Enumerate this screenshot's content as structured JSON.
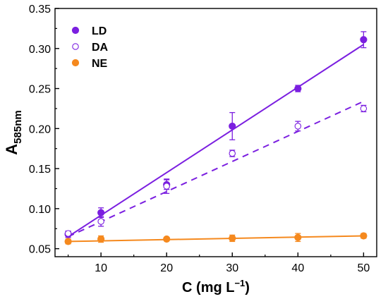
{
  "chart_data": {
    "type": "scatter",
    "xlabel": {
      "main": "C (mg L",
      "sup": "−1",
      "end": ")"
    },
    "ylabel": {
      "main": "A",
      "sub": "585nm"
    },
    "xlim": [
      3,
      52
    ],
    "ylim": [
      0.04,
      0.35
    ],
    "xticks": [
      10,
      20,
      30,
      40,
      50
    ],
    "yticks": [
      0.05,
      0.1,
      0.15,
      0.2,
      0.25,
      0.3,
      0.35
    ],
    "ytick_labels": [
      "0.05",
      "0.10",
      "0.15",
      "0.20",
      "0.25",
      "0.30",
      "0.35"
    ],
    "grid": false,
    "legend_position": "top-left",
    "series": [
      {
        "name": "LD",
        "color": "#7b1fe0",
        "marker": "filled-circle",
        "fit_line": "solid",
        "fit": [
          [
            5,
            0.065
          ],
          [
            50,
            0.305
          ]
        ],
        "points": [
          {
            "x": 5,
            "y": 0.068,
            "err": 0.004
          },
          {
            "x": 10,
            "y": 0.095,
            "err": 0.006
          },
          {
            "x": 20,
            "y": 0.13,
            "err": 0.006
          },
          {
            "x": 30,
            "y": 0.203,
            "err": 0.017
          },
          {
            "x": 40,
            "y": 0.25,
            "err": 0.004
          },
          {
            "x": 50,
            "y": 0.311,
            "err": 0.01
          }
        ]
      },
      {
        "name": "DA",
        "color": "#7b1fe0",
        "marker": "open-circle",
        "fit_line": "dashed",
        "fit": [
          [
            5,
            0.065
          ],
          [
            50,
            0.234
          ]
        ],
        "points": [
          {
            "x": 5,
            "y": 0.069,
            "err": 0.003
          },
          {
            "x": 10,
            "y": 0.084,
            "err": 0.006
          },
          {
            "x": 20,
            "y": 0.128,
            "err": 0.009
          },
          {
            "x": 30,
            "y": 0.169,
            "err": 0.004
          },
          {
            "x": 40,
            "y": 0.203,
            "err": 0.006
          },
          {
            "x": 50,
            "y": 0.225,
            "err": 0.004
          }
        ]
      },
      {
        "name": "NE",
        "color": "#f5891e",
        "marker": "filled-circle",
        "fit_line": "solid",
        "fit": [
          [
            5,
            0.059
          ],
          [
            50,
            0.066
          ]
        ],
        "points": [
          {
            "x": 5,
            "y": 0.059,
            "err": 0.003
          },
          {
            "x": 10,
            "y": 0.062,
            "err": 0.004
          },
          {
            "x": 20,
            "y": 0.062,
            "err": 0.002
          },
          {
            "x": 30,
            "y": 0.063,
            "err": 0.004
          },
          {
            "x": 40,
            "y": 0.064,
            "err": 0.005
          },
          {
            "x": 50,
            "y": 0.066,
            "err": 0.003
          }
        ]
      }
    ]
  }
}
